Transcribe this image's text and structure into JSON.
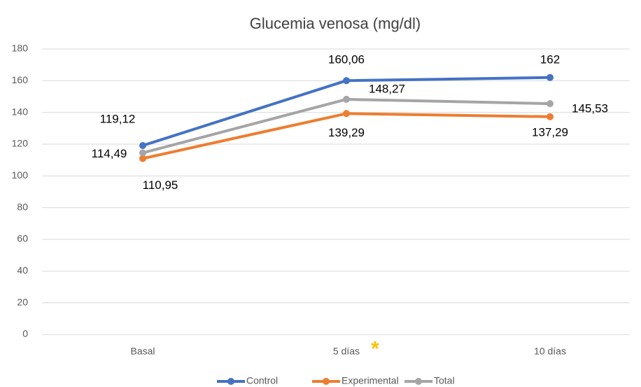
{
  "chart_data": {
    "type": "line",
    "title": "Glucemia venosa (mg/dl)",
    "categories": [
      "Basal",
      "5 días",
      "10 días"
    ],
    "series": [
      {
        "name": "Control",
        "color": "#4472c4",
        "values": [
          119.12,
          160.06,
          162
        ],
        "value_labels": [
          "119,12",
          "160,06",
          "162"
        ]
      },
      {
        "name": "Experimental",
        "color": "#ed7d31",
        "values": [
          110.95,
          139.29,
          137.29
        ],
        "value_labels": [
          "110,95",
          "139,29",
          "137,29"
        ]
      },
      {
        "name": "Total",
        "color": "#a5a5a5",
        "values": [
          114.49,
          148.27,
          145.53
        ],
        "value_labels": [
          "114,49",
          "148,27",
          "145,53"
        ]
      }
    ],
    "annotations": [
      {
        "text": "*",
        "color": "#ffc000"
      }
    ],
    "ylim": [
      0,
      180
    ],
    "yticks": [
      0,
      20,
      40,
      60,
      80,
      100,
      120,
      140,
      160,
      180
    ],
    "grid": true,
    "legend": "bottom"
  }
}
